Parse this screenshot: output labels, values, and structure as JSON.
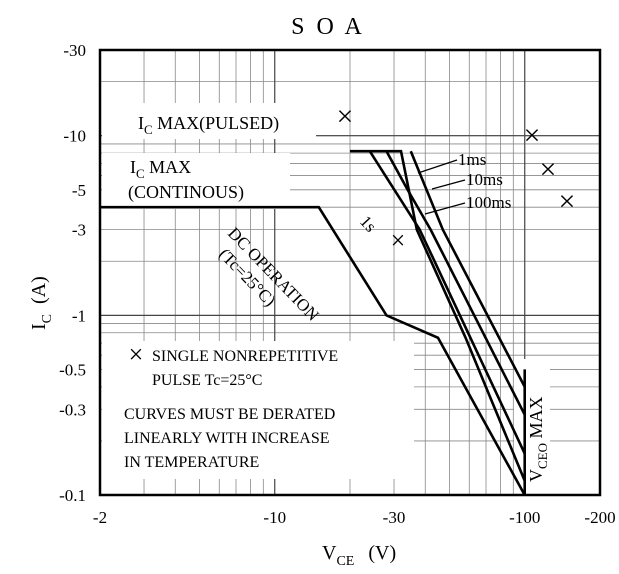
{
  "chart_data": {
    "type": "line",
    "title": "S O A",
    "xlabel": {
      "main": "V",
      "sub": "CE",
      "unit": "(V)"
    },
    "ylabel": {
      "main": "I",
      "sub": "C",
      "unit": "(A)"
    },
    "xscale": "log",
    "yscale": "log",
    "xlim": [
      -2,
      -200
    ],
    "ylim": [
      -0.1,
      -30
    ],
    "x_ticks": [
      {
        "value": 2,
        "label": "-2"
      },
      {
        "value": 10,
        "label": "-10"
      },
      {
        "value": 30,
        "label": "-30"
      },
      {
        "value": 100,
        "label": "-100"
      },
      {
        "value": 200,
        "label": "-200"
      }
    ],
    "y_ticks": [
      {
        "value": 30,
        "label": "-30"
      },
      {
        "value": 10,
        "label": "-10"
      },
      {
        "value": 5,
        "label": "-5"
      },
      {
        "value": 3,
        "label": "-3"
      },
      {
        "value": 1,
        "label": "-1"
      },
      {
        "value": 0.5,
        "label": "-0.5"
      },
      {
        "value": 0.3,
        "label": "-0.3"
      },
      {
        "value": 0.1,
        "label": "-0.1"
      }
    ],
    "grid": true,
    "series": [
      {
        "name": "DC OPERATION (Tc=25°C)",
        "points": [
          [
            2,
            4.0
          ],
          [
            15,
            4.0
          ],
          [
            28,
            1.0
          ],
          [
            45,
            0.75
          ],
          [
            100,
            0.1
          ]
        ]
      },
      {
        "name": "1s",
        "points": [
          [
            20,
            8.2
          ],
          [
            32,
            8.2
          ],
          [
            37,
            3.0
          ],
          [
            58,
            0.75
          ],
          [
            100,
            0.12
          ]
        ]
      },
      {
        "name": "100ms",
        "points": [
          [
            24,
            8.2
          ],
          [
            38,
            3.0
          ],
          [
            100,
            0.17
          ]
        ]
      },
      {
        "name": "10ms",
        "points": [
          [
            28,
            8.2
          ],
          [
            34,
            5.0
          ],
          [
            42,
            3.0
          ],
          [
            100,
            0.28
          ]
        ]
      },
      {
        "name": "1ms",
        "points": [
          [
            35,
            8.2
          ],
          [
            47,
            3.0
          ],
          [
            100,
            0.4
          ]
        ]
      },
      {
        "name": "VCEO MAX",
        "points": [
          [
            100,
            0.5
          ],
          [
            100,
            0.1
          ]
        ]
      }
    ],
    "annotations": {
      "ic_max_pulsed": {
        "prefix": "I",
        "sub": "C",
        "suffix": " MAX(PULSED)"
      },
      "ic_max_cont_line1": {
        "prefix": "I",
        "sub": "C",
        "suffix": " MAX"
      },
      "ic_max_cont_line2": "(CONTINOUS)",
      "label_1ms": "1ms",
      "label_10ms": "10ms",
      "label_100ms": "100ms",
      "label_1s": "1s",
      "dc_line1": "DC OPERATION",
      "dc_line2": "(Tc=25°C)",
      "vceo_prefix": "V",
      "vceo_sub": "CEO",
      "vceo_suffix": " MAX",
      "note1_line1": "SINGLE NONREPETITIVE",
      "note1_line2": "PULSE Tc=25°C",
      "note2_line1": "CURVES MUST BE DERATED",
      "note2_line2": "LINEARLY WITH INCREASE",
      "note2_line3": "IN TEMPERATURE",
      "pulse_marker_symbol": "×"
    }
  }
}
